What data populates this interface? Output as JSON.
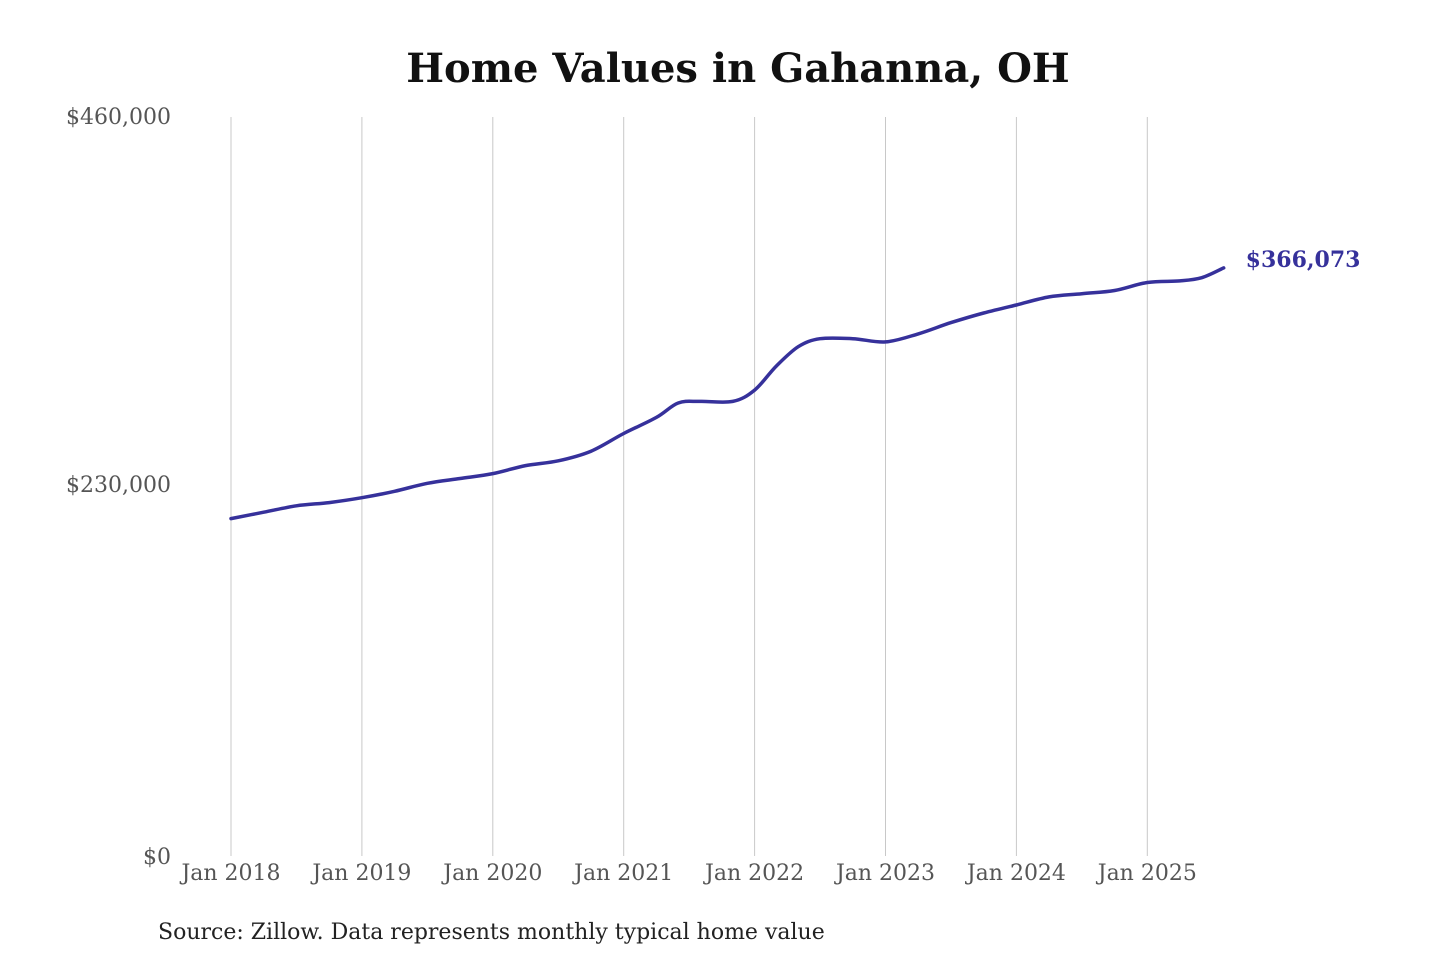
{
  "chart_data": {
    "type": "line",
    "title": "Home Values in Gahanna, OH",
    "xlabel": "",
    "ylabel": "",
    "x_ticks": [
      "Jan 2018",
      "Jan 2019",
      "Jan 2020",
      "Jan 2021",
      "Jan 2022",
      "Jan 2023",
      "Jan 2024",
      "Jan 2025"
    ],
    "y_ticks": [
      "$0",
      "$230,000",
      "$460,000"
    ],
    "ylim": [
      0,
      460000
    ],
    "xlim": [
      "2018-01",
      "2025-08"
    ],
    "grid": "vertical",
    "legend": "none",
    "series": [
      {
        "color": "#36319b",
        "end_label": "$366,073",
        "x": [
          "2018-01",
          "2018-04",
          "2018-07",
          "2018-10",
          "2019-01",
          "2019-04",
          "2019-07",
          "2019-10",
          "2020-01",
          "2020-04",
          "2020-07",
          "2020-10",
          "2021-01",
          "2021-04",
          "2021-06",
          "2021-08",
          "2021-11",
          "2022-01",
          "2022-03",
          "2022-05",
          "2022-07",
          "2022-10",
          "2023-01",
          "2023-04",
          "2023-07",
          "2023-10",
          "2024-01",
          "2024-04",
          "2024-07",
          "2024-10",
          "2025-01",
          "2025-04",
          "2025-06",
          "2025-08"
        ],
        "y": [
          210000,
          214000,
          218000,
          220000,
          223000,
          227000,
          232000,
          235000,
          238000,
          243000,
          246000,
          252000,
          263000,
          273000,
          282000,
          283000,
          283000,
          290000,
          305000,
          317000,
          322000,
          322000,
          320000,
          325000,
          332000,
          338000,
          343000,
          348000,
          350000,
          352000,
          357000,
          358000,
          360000,
          366073
        ]
      }
    ]
  },
  "footer": {
    "source": "Source: Zillow. Data represents monthly typical home value"
  }
}
